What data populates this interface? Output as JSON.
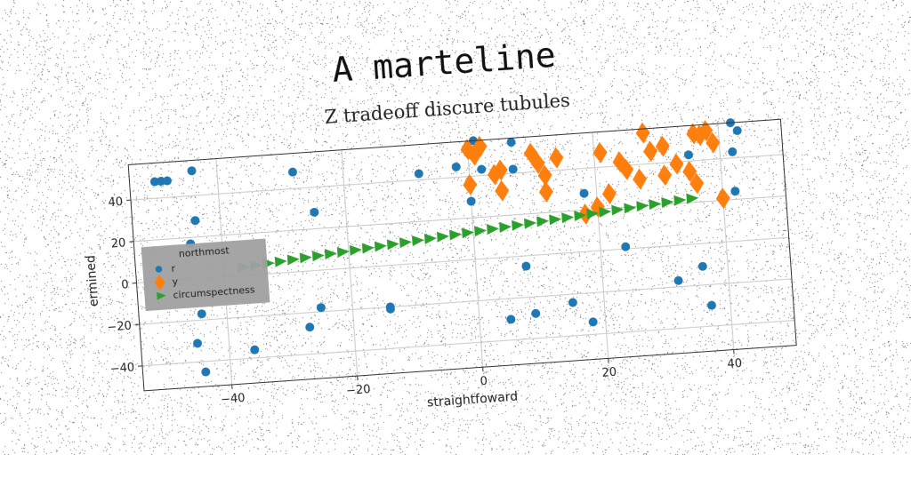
{
  "chart_data": {
    "type": "scatter",
    "suptitle": "A marteline",
    "title": "Z tradeoff discure tubules",
    "xlabel": "straightfoward",
    "ylabel": "ermined",
    "xlim": [
      -54,
      50
    ],
    "ylim": [
      -52,
      57
    ],
    "xticks": [
      -40,
      -20,
      0,
      20,
      40
    ],
    "yticks": [
      -40,
      -20,
      0,
      20,
      40
    ],
    "grid": true,
    "legend": {
      "placement": "center-left",
      "title": "northmost",
      "entries": [
        "r",
        "y",
        "circumspectness"
      ]
    },
    "series": [
      {
        "name": "r",
        "color": "#1f77b4",
        "marker": "circle",
        "points": [
          [
            -50,
            48
          ],
          [
            -49,
            48
          ],
          [
            -48,
            48
          ],
          [
            -44,
            52
          ],
          [
            -44,
            28
          ],
          [
            -45,
            17
          ],
          [
            -44,
            -17
          ],
          [
            -45,
            -31
          ],
          [
            -44,
            -45
          ],
          [
            -36,
            -36
          ],
          [
            -28,
            48
          ],
          [
            -27,
            -27
          ],
          [
            -25,
            28
          ],
          [
            -25,
            -18
          ],
          [
            -14,
            -20
          ],
          [
            -14,
            -21
          ],
          [
            -8,
            43
          ],
          [
            -2,
            45
          ],
          [
            0,
            28
          ],
          [
            1,
            57
          ],
          [
            2,
            43
          ],
          [
            7,
            55
          ],
          [
            7,
            42
          ],
          [
            8,
            -5
          ],
          [
            5,
            -30
          ],
          [
            9,
            -28
          ],
          [
            15,
            -24
          ],
          [
            18,
            -34
          ],
          [
            18,
            28
          ],
          [
            24,
            1
          ],
          [
            32,
            -17
          ],
          [
            35,
            43
          ],
          [
            36,
            -11
          ],
          [
            37,
            -30
          ],
          [
            42,
            57
          ],
          [
            43,
            53
          ],
          [
            42,
            43
          ],
          [
            42,
            24
          ]
        ]
      },
      {
        "name": "y",
        "color": "#ff7f0e",
        "marker": "diamond",
        "points": [
          [
            0,
            53
          ],
          [
            1,
            50
          ],
          [
            2,
            54
          ],
          [
            0,
            36
          ],
          [
            4,
            40
          ],
          [
            5,
            42
          ],
          [
            5,
            32
          ],
          [
            10,
            49
          ],
          [
            11,
            44
          ],
          [
            12,
            38
          ],
          [
            12,
            30
          ],
          [
            14,
            46
          ],
          [
            18,
            18
          ],
          [
            20,
            21
          ],
          [
            21,
            47
          ],
          [
            22,
            27
          ],
          [
            24,
            42
          ],
          [
            25,
            38
          ],
          [
            27,
            33
          ],
          [
            28,
            55
          ],
          [
            29,
            46
          ],
          [
            31,
            48
          ],
          [
            31,
            34
          ],
          [
            33,
            39
          ],
          [
            35,
            35
          ],
          [
            36,
            53
          ],
          [
            36,
            29
          ],
          [
            37,
            52
          ],
          [
            38,
            54
          ],
          [
            39,
            48
          ],
          [
            40,
            21
          ]
        ]
      },
      {
        "name": "circumspectness",
        "color": "#2ca02c",
        "marker": "triangle-right",
        "points": [
          [
            -37,
            4
          ],
          [
            -35,
            4.5
          ],
          [
            -33,
            5
          ],
          [
            -31,
            5.5
          ],
          [
            -29,
            6
          ],
          [
            -27,
            6.5
          ],
          [
            -25,
            7
          ],
          [
            -23,
            7.5
          ],
          [
            -21,
            8
          ],
          [
            -19,
            8.5
          ],
          [
            -17,
            9
          ],
          [
            -15,
            9.5
          ],
          [
            -13,
            10
          ],
          [
            -11,
            10.5
          ],
          [
            -9,
            11
          ],
          [
            -7,
            11.5
          ],
          [
            -5,
            12
          ],
          [
            -3,
            12.5
          ],
          [
            -1,
            13
          ],
          [
            1,
            13.5
          ],
          [
            3,
            14
          ],
          [
            5,
            14.5
          ],
          [
            7,
            15
          ],
          [
            9,
            15.5
          ],
          [
            11,
            16
          ],
          [
            13,
            16.5
          ],
          [
            15,
            17
          ],
          [
            17,
            17.5
          ],
          [
            19,
            18
          ],
          [
            21,
            18.5
          ],
          [
            23,
            19
          ],
          [
            25,
            19.5
          ],
          [
            27,
            20
          ],
          [
            29,
            20.5
          ],
          [
            31,
            21
          ],
          [
            33,
            21.5
          ],
          [
            35,
            22
          ]
        ]
      }
    ]
  }
}
